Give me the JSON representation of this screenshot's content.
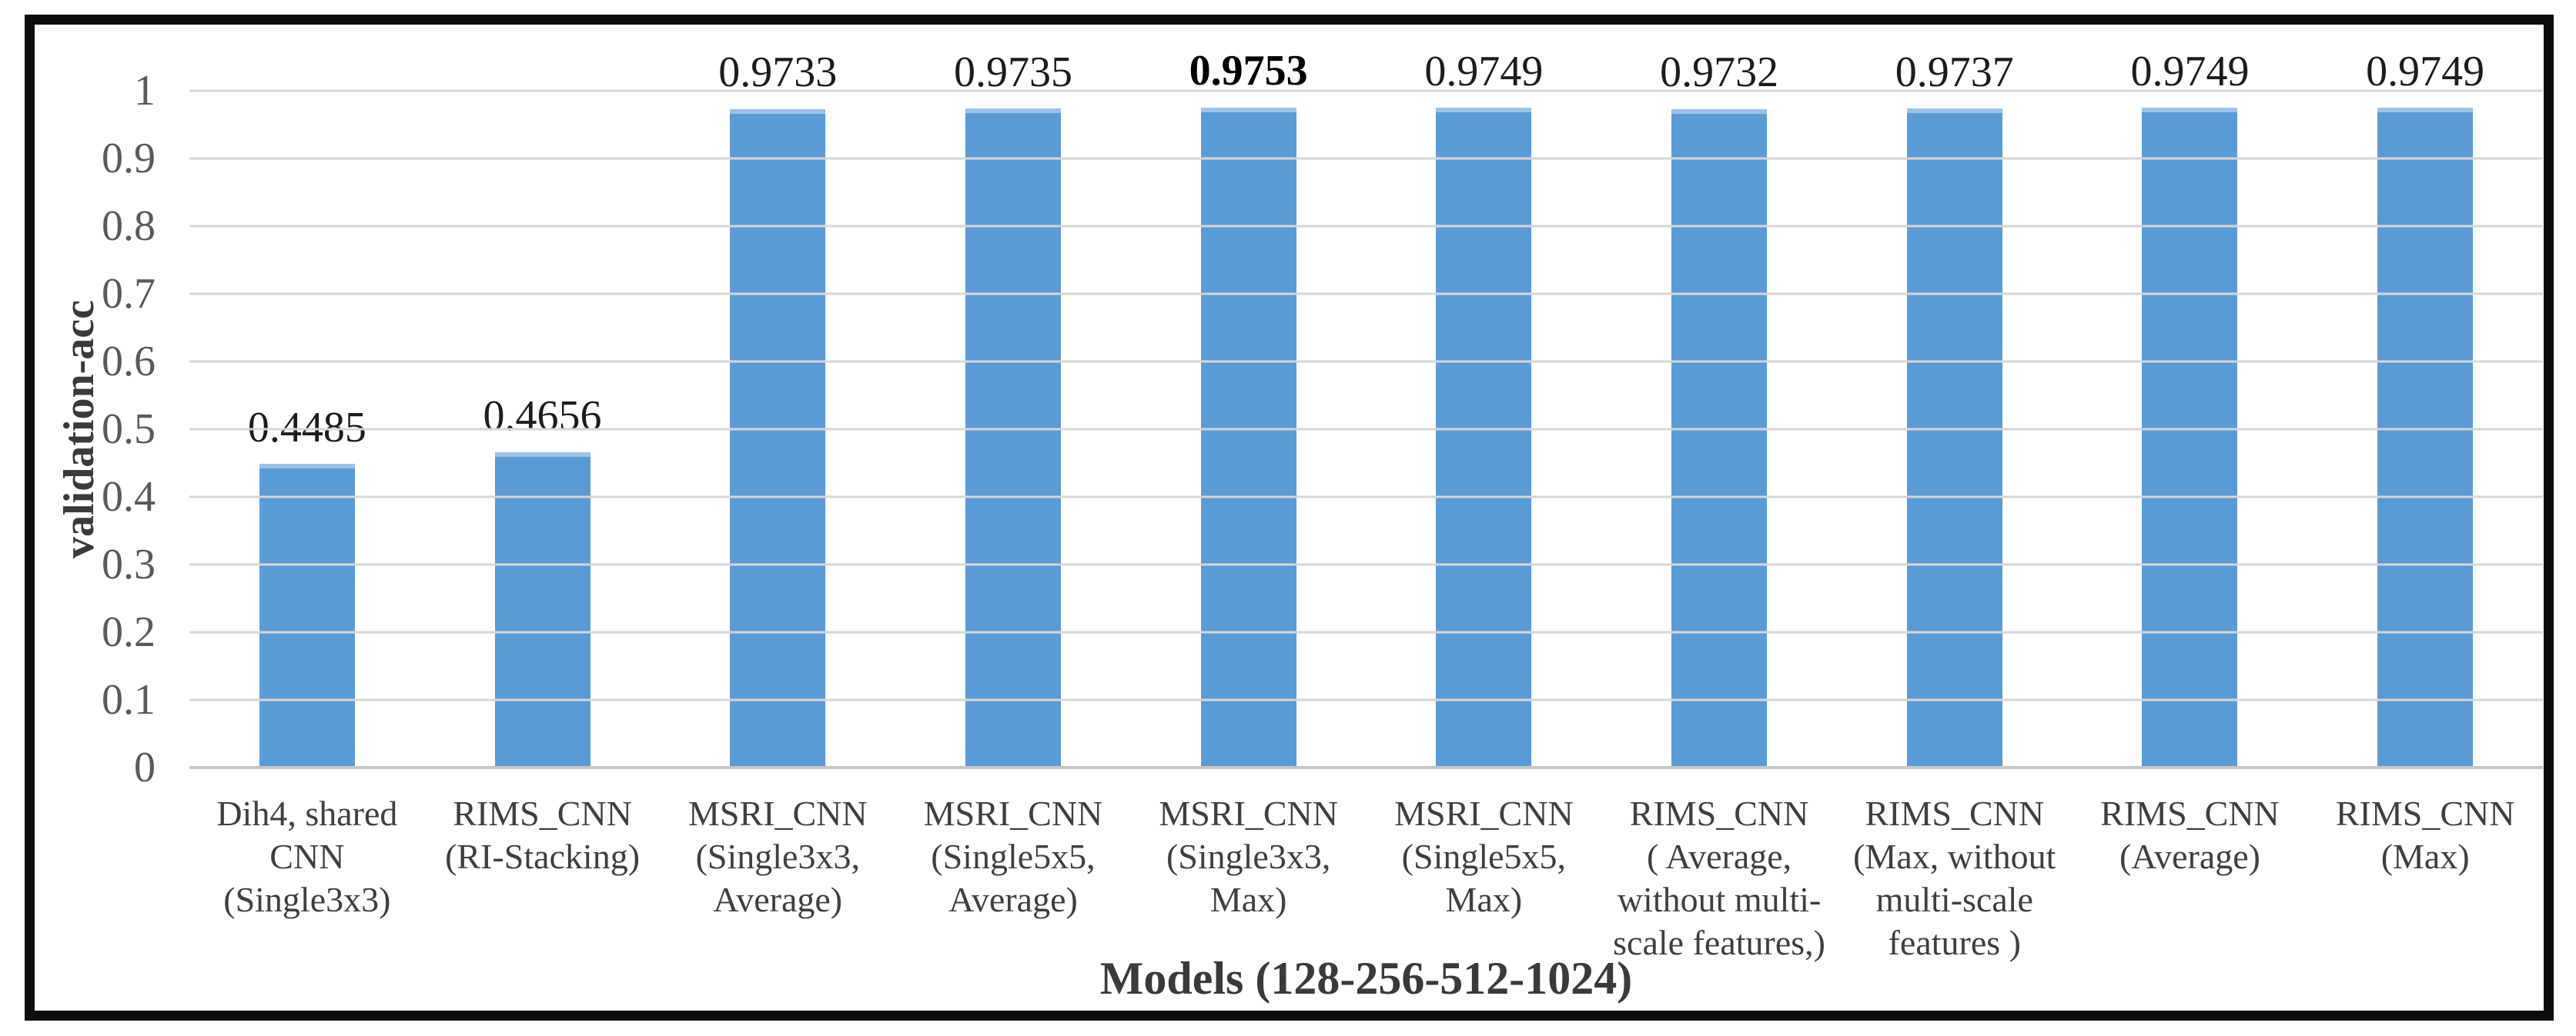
{
  "chart_data": {
    "type": "bar",
    "title": "",
    "xlabel": "Models (128-256-512-1024)",
    "ylabel": "validation-acc",
    "ylim": [
      0,
      1
    ],
    "yticks": [
      "1",
      "0.9",
      "0.8",
      "0.7",
      "0.6",
      "0.5",
      "0.4",
      "0.3",
      "0.2",
      "0.1",
      "0"
    ],
    "grid": true,
    "legend": "none",
    "categories": [
      {
        "lines": [
          "Dih4, shared",
          "CNN",
          "(Single3x3)"
        ]
      },
      {
        "lines": [
          "RIMS_CNN",
          "(RI-Stacking)"
        ]
      },
      {
        "lines": [
          "MSRI_CNN",
          "(Single3x3,",
          "Average)"
        ]
      },
      {
        "lines": [
          "MSRI_CNN",
          "(Single5x5,",
          "Average)"
        ]
      },
      {
        "lines": [
          "MSRI_CNN",
          "(Single3x3,",
          "Max)"
        ]
      },
      {
        "lines": [
          "MSRI_CNN",
          "(Single5x5,",
          "Max)"
        ]
      },
      {
        "lines": [
          "RIMS_CNN",
          "( Average,",
          "without multi-",
          "scale features,)"
        ]
      },
      {
        "lines": [
          "RIMS_CNN",
          "(Max, without",
          "multi-scale",
          "features )"
        ]
      },
      {
        "lines": [
          "RIMS_CNN",
          "(Average)"
        ]
      },
      {
        "lines": [
          "RIMS_CNN",
          "(Max)"
        ]
      }
    ],
    "values": [
      0.4485,
      0.4656,
      0.9733,
      0.9735,
      0.9753,
      0.9749,
      0.9732,
      0.9737,
      0.9749,
      0.9749
    ],
    "data_labels": [
      {
        "text": "0.4485",
        "bold": false
      },
      {
        "text": "0.4656",
        "bold": false
      },
      {
        "text": "0.9733",
        "bold": false
      },
      {
        "text": "0.9735",
        "bold": false
      },
      {
        "text": "0.9753",
        "bold": true
      },
      {
        "text": "0.9749",
        "bold": false
      },
      {
        "text": "0.9732",
        "bold": false
      },
      {
        "text": "0.9737",
        "bold": false
      },
      {
        "text": "0.9749",
        "bold": false
      },
      {
        "text": "0.9749",
        "bold": false
      }
    ],
    "colors": {
      "bar_fill": "#5B9BD5",
      "bar_top_edge": "#9CC2E5",
      "gridline": "#D6D6D6",
      "axis_line": "#C6C6C6",
      "tick_text": "#595959",
      "label_text": "#1C1C1C",
      "title_text": "#3A3A3A",
      "frame_border": "#0D0D0D"
    }
  }
}
